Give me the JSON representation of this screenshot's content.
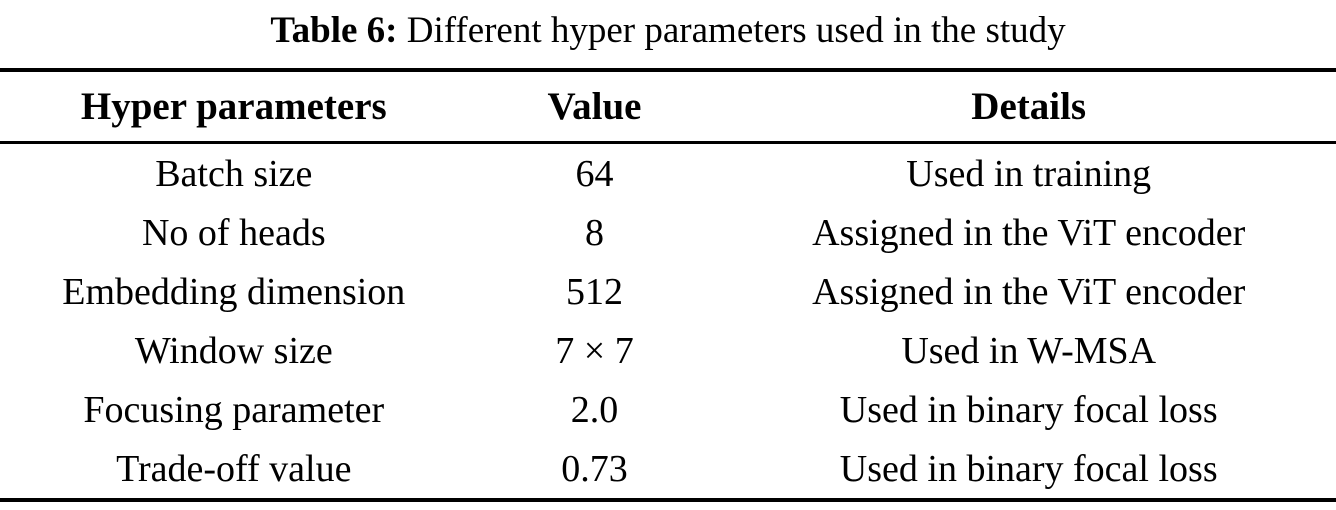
{
  "caption": {
    "label": "Table 6:",
    "text": " Different hyper parameters used in the study"
  },
  "table": {
    "headers": {
      "parameter": "Hyper parameters",
      "value": "Value",
      "details": "Details"
    },
    "rows": [
      {
        "parameter": "Batch size",
        "value": "64",
        "details": "Used in training"
      },
      {
        "parameter": "No of heads",
        "value": "8",
        "details": "Assigned in the ViT encoder"
      },
      {
        "parameter": "Embedding dimension",
        "value": "512",
        "details": "Assigned in the ViT encoder"
      },
      {
        "parameter": "Window size",
        "value": "7 × 7",
        "details": "Used in W-MSA"
      },
      {
        "parameter": "Focusing parameter",
        "value": "2.0",
        "details": "Used in binary focal loss"
      },
      {
        "parameter": "Trade-off value",
        "value": "0.73",
        "details": "Used in binary focal loss"
      }
    ],
    "colors": {
      "text": "#000000",
      "background": "#ffffff",
      "rule": "#000000"
    }
  },
  "chart_data": {
    "type": "table",
    "title": "Table 6: Different hyper parameters used in the study",
    "columns": [
      "Hyper parameters",
      "Value",
      "Details"
    ],
    "cells": [
      [
        "Batch size",
        "64",
        "Used in training"
      ],
      [
        "No of heads",
        "8",
        "Assigned in the ViT encoder"
      ],
      [
        "Embedding dimension",
        "512",
        "Assigned in the ViT encoder"
      ],
      [
        "Window size",
        "7 × 7",
        "Used in W-MSA"
      ],
      [
        "Focusing parameter",
        "2.0",
        "Used in binary focal loss"
      ],
      [
        "Trade-off value",
        "0.73",
        "Used in binary focal loss"
      ]
    ]
  }
}
